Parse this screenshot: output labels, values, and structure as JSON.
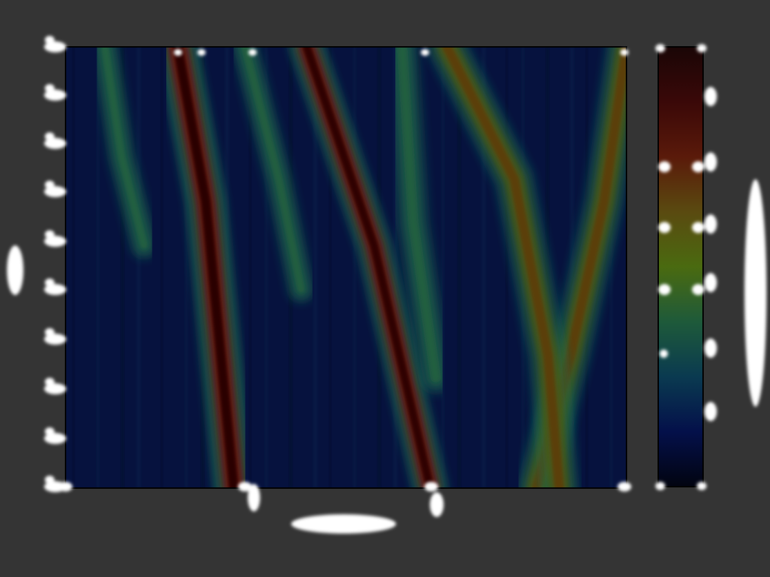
{
  "chart_data": {
    "type": "heatmap",
    "title": "",
    "xlabel": "",
    "ylabel": "",
    "colorbar_label": "",
    "colormap": [
      "#020410",
      "#04104a",
      "#0a3a50",
      "#1e5a3a",
      "#4a6a10",
      "#5a4a10",
      "#5a1a0a",
      "#3a0808",
      "#1a0606"
    ],
    "background": "#343434",
    "grid": false,
    "ridges": [
      {
        "name": "",
        "strength": 1.0,
        "width": 14,
        "points": [
          [
            0.2,
            0.0
          ],
          [
            0.25,
            0.35
          ],
          [
            0.3,
            1.0
          ]
        ]
      },
      {
        "name": "",
        "strength": 0.95,
        "width": 12,
        "points": [
          [
            0.43,
            0.0
          ],
          [
            0.55,
            0.45
          ],
          [
            0.65,
            1.0
          ]
        ]
      },
      {
        "name": "",
        "strength": 0.55,
        "width": 14,
        "points": [
          [
            0.84,
            1.0
          ],
          [
            0.9,
            0.7
          ],
          [
            0.96,
            0.35
          ],
          [
            1.0,
            0.0
          ]
        ]
      },
      {
        "name": "",
        "strength": 0.55,
        "width": 14,
        "points": [
          [
            0.68,
            0.0
          ],
          [
            0.8,
            0.3
          ],
          [
            0.86,
            0.7
          ],
          [
            0.88,
            1.0
          ]
        ]
      },
      {
        "name": "",
        "strength": 0.35,
        "width": 10,
        "points": [
          [
            0.07,
            0.0
          ],
          [
            0.1,
            0.25
          ],
          [
            0.14,
            0.45
          ]
        ]
      },
      {
        "name": "",
        "strength": 0.3,
        "width": 10,
        "points": [
          [
            0.32,
            0.0
          ],
          [
            0.38,
            0.3
          ],
          [
            0.42,
            0.55
          ]
        ]
      },
      {
        "name": "",
        "strength": 0.3,
        "width": 12,
        "points": [
          [
            0.6,
            0.0
          ],
          [
            0.62,
            0.4
          ],
          [
            0.66,
            0.75
          ]
        ]
      }
    ]
  }
}
